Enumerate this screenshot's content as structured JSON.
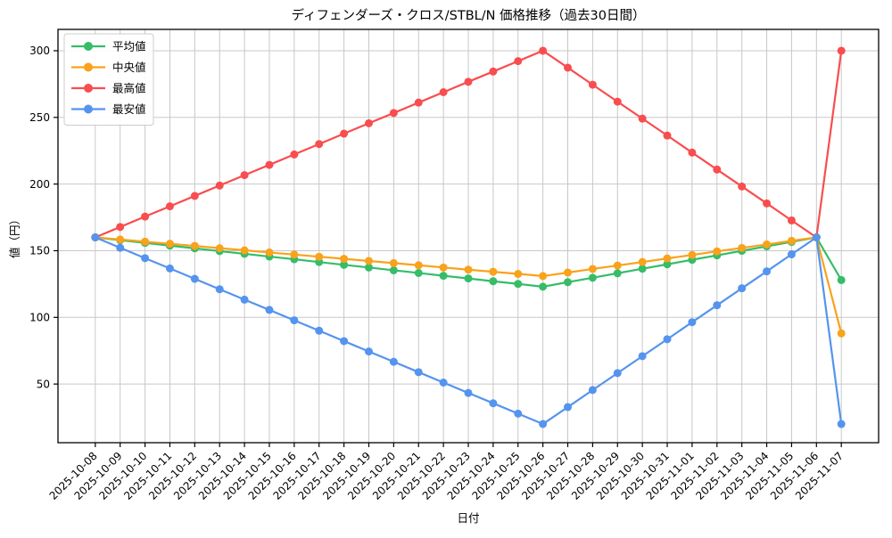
{
  "title": "ディフェンダーズ・クロス/STBL/N 価格推移（過去30日間）",
  "chart_data": {
    "type": "line",
    "title": "ディフェンダーズ・クロス/STBL/N 価格推移（過去30日間）",
    "xlabel": "日付",
    "ylabel": "値（円）",
    "grid": true,
    "grid_color": "#c8c8c8",
    "background": "#ffffff",
    "legend_position": "upper-left",
    "marker": "circle",
    "ylim": [
      6,
      316
    ],
    "yticks": [
      50,
      100,
      150,
      200,
      250,
      300
    ],
    "x": [
      "2025-10-08",
      "2025-10-09",
      "2025-10-10",
      "2025-10-11",
      "2025-10-12",
      "2025-10-13",
      "2025-10-14",
      "2025-10-15",
      "2025-10-16",
      "2025-10-17",
      "2025-10-18",
      "2025-10-19",
      "2025-10-20",
      "2025-10-21",
      "2025-10-22",
      "2025-10-23",
      "2025-10-24",
      "2025-10-25",
      "2025-10-26",
      "2025-10-27",
      "2025-10-28",
      "2025-10-29",
      "2025-10-30",
      "2025-10-31",
      "2025-11-01",
      "2025-11-02",
      "2025-11-03",
      "2025-11-04",
      "2025-11-05",
      "2025-11-06",
      "2025-11-07"
    ],
    "series": [
      {
        "key": "mean",
        "name": "平均値",
        "color": "#35bd68",
        "values": [
          160.0,
          157.9,
          155.9,
          153.8,
          151.8,
          149.7,
          147.7,
          145.6,
          143.6,
          141.5,
          139.4,
          137.4,
          135.3,
          133.3,
          131.2,
          129.2,
          127.1,
          125.1,
          123.0,
          126.4,
          129.7,
          133.1,
          136.5,
          139.8,
          143.2,
          146.5,
          149.9,
          153.3,
          156.6,
          160.0,
          128.0
        ]
      },
      {
        "key": "median",
        "name": "中央値",
        "color": "#f9a21b",
        "values": [
          160.0,
          158.4,
          156.8,
          155.2,
          153.6,
          151.9,
          150.3,
          148.7,
          147.1,
          145.5,
          143.9,
          142.3,
          140.7,
          139.1,
          137.4,
          135.8,
          134.2,
          132.6,
          131.0,
          133.6,
          136.3,
          138.9,
          141.5,
          144.2,
          146.8,
          149.5,
          152.1,
          154.7,
          157.4,
          160.0,
          88.0
        ]
      },
      {
        "key": "max",
        "name": "最高値",
        "color": "#f94d4f",
        "values": [
          160.0,
          167.8,
          175.6,
          183.3,
          191.1,
          198.9,
          206.7,
          214.4,
          222.2,
          230.0,
          237.8,
          245.6,
          253.3,
          261.1,
          268.9,
          276.7,
          284.4,
          292.2,
          300.0,
          287.3,
          274.5,
          261.8,
          249.1,
          236.4,
          223.6,
          210.9,
          198.2,
          185.5,
          172.7,
          160.0,
          300.0
        ]
      },
      {
        "key": "min",
        "name": "最安値",
        "color": "#5594ee",
        "values": [
          160.0,
          152.2,
          144.4,
          136.7,
          128.9,
          121.1,
          113.3,
          105.6,
          97.8,
          90.0,
          82.2,
          74.4,
          66.7,
          58.9,
          51.1,
          43.3,
          35.6,
          27.8,
          20.0,
          32.7,
          45.5,
          58.2,
          70.9,
          83.6,
          96.4,
          109.1,
          121.8,
          134.5,
          147.3,
          160.0,
          20.0
        ]
      }
    ]
  }
}
